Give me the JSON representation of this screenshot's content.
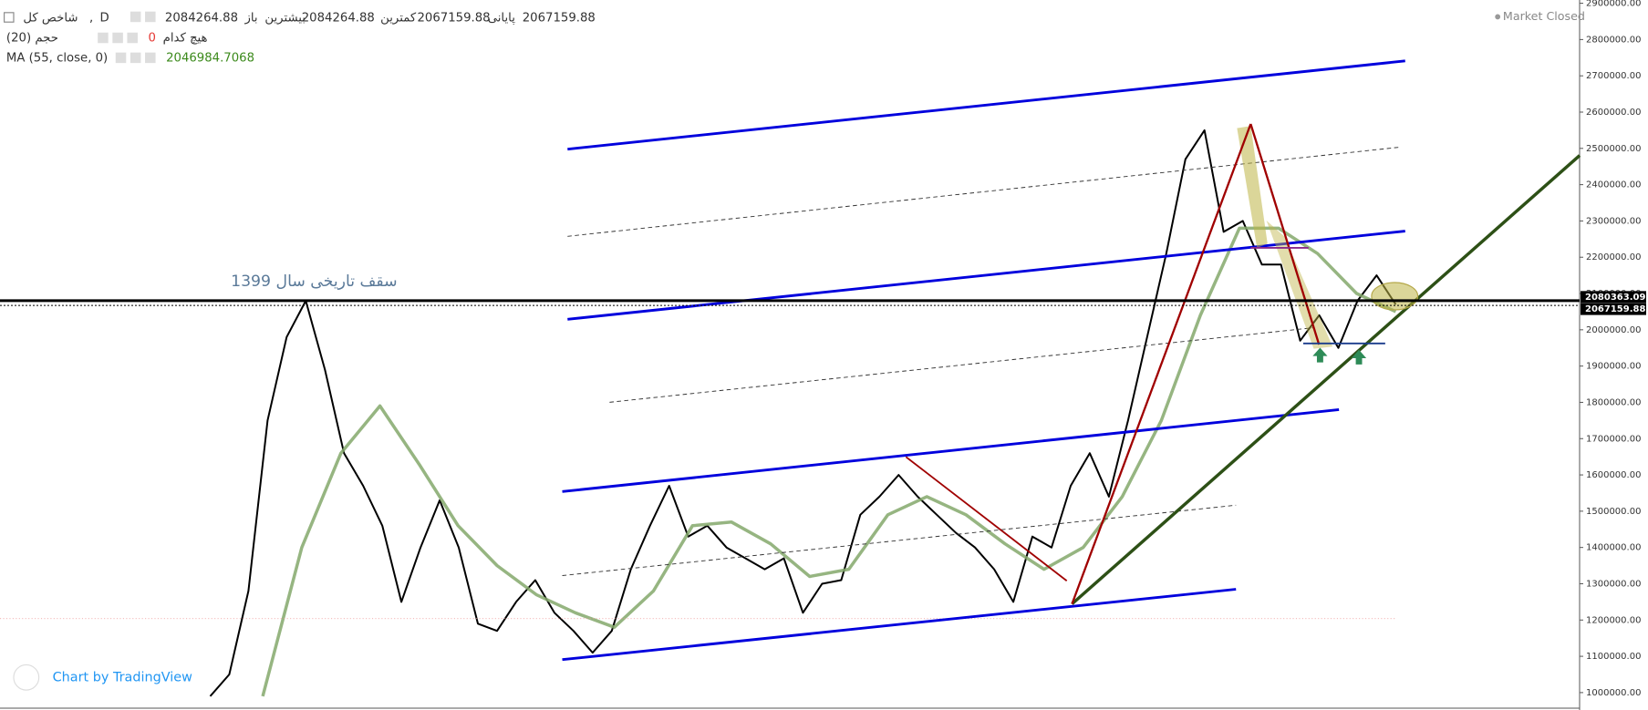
{
  "header": {
    "symbol": "شاخص کل",
    "separator": ",",
    "interval": "D",
    "open_label": "باز",
    "open": 2084264.88,
    "high_label": "بیشترین",
    "high": 2084264.88,
    "low_label": "کمترین",
    "low": 2067159.88,
    "close_label": "پایانی",
    "close": 2067159.88,
    "volume": "حجم (20)",
    "volume_mode": "هیچ کدام",
    "volume_value": 0,
    "ma_value": 2046984.7068
  },
  "status": "Market Closed",
  "watermark": "Chart by TradingView",
  "annotation": "سقف تاریخی سال 1399",
  "chart_data": {
    "type": "line",
    "series": [
      {
        "color": "#000000",
        "values": [
          990000,
          1050000,
          1280000,
          1750000,
          1980000,
          2080000,
          1890000,
          1660000,
          1570000,
          1460000,
          1250000,
          1400000,
          1530000,
          1400000,
          1190000,
          1170000,
          1250000,
          1310000,
          1220000,
          1170000,
          1110000,
          1170000,
          1340000,
          1460000,
          1570000,
          1430000,
          1460000,
          1400000,
          1370000,
          1340000,
          1370000,
          1220000,
          1300000,
          1310000,
          1490000,
          1540000,
          1600000,
          1540000,
          1490000,
          1440000,
          1400000,
          1340000,
          1250000,
          1430000,
          1400000,
          1570000,
          1660000,
          1540000,
          1750000,
          1980000,
          2210000,
          2470000,
          2550000,
          2270000,
          2300000,
          2180000,
          2180000,
          1970000,
          2040000,
          1950000,
          2080000,
          2150000,
          2070000
        ]
      },
      {
        "name": "MA (55, close, 0)",
        "color": "#84a86b",
        "values": [
          990000,
          1400000,
          1660000,
          1790000,
          1630000,
          1460000,
          1350000,
          1270000,
          1220000,
          1180000,
          1280000,
          1460000,
          1470000,
          1410000,
          1320000,
          1340000,
          1490000,
          1540000,
          1490000,
          1410000,
          1340000,
          1400000,
          1540000,
          1750000,
          2040000,
          2280000,
          2280000,
          2210000,
          2100000,
          2050000
        ]
      }
    ],
    "price_lines": [
      {
        "value": 2080363.09,
        "color": "#000000"
      },
      {
        "value": 2067159.88,
        "color": "#000000"
      }
    ],
    "ylim": [
      952000,
      2909000
    ],
    "yticks": [
      {
        "value": 1000000,
        "label": "1000000.00"
      },
      {
        "value": 1100000,
        "label": "1100000.00"
      },
      {
        "value": 1200000,
        "label": "1200000.00"
      },
      {
        "value": 1300000,
        "label": "1300000.00"
      },
      {
        "value": 1400000,
        "label": "1400000.00"
      },
      {
        "value": 1500000,
        "label": "1500000.00"
      },
      {
        "value": 1600000,
        "label": "1600000.00"
      },
      {
        "value": 1700000,
        "label": "1700000.00"
      },
      {
        "value": 1800000,
        "label": "1800000.00"
      },
      {
        "value": 1900000,
        "label": "1900000.00"
      },
      {
        "value": 2000000,
        "label": "2000000.00"
      },
      {
        "value": 2100000,
        "label": "2100000.00"
      },
      {
        "value": 2200000,
        "label": "2200000.00"
      },
      {
        "value": 2300000,
        "label": "2300000.00"
      },
      {
        "value": 2400000,
        "label": "2400000.00"
      },
      {
        "value": 2500000,
        "label": "2500000.00"
      },
      {
        "value": 2600000,
        "label": "2600000.00"
      },
      {
        "value": 2700000,
        "label": "2700000.00"
      },
      {
        "value": 2800000,
        "label": "2800000.00"
      },
      {
        "value": 2900000,
        "label": "2900000.00"
      }
    ]
  }
}
